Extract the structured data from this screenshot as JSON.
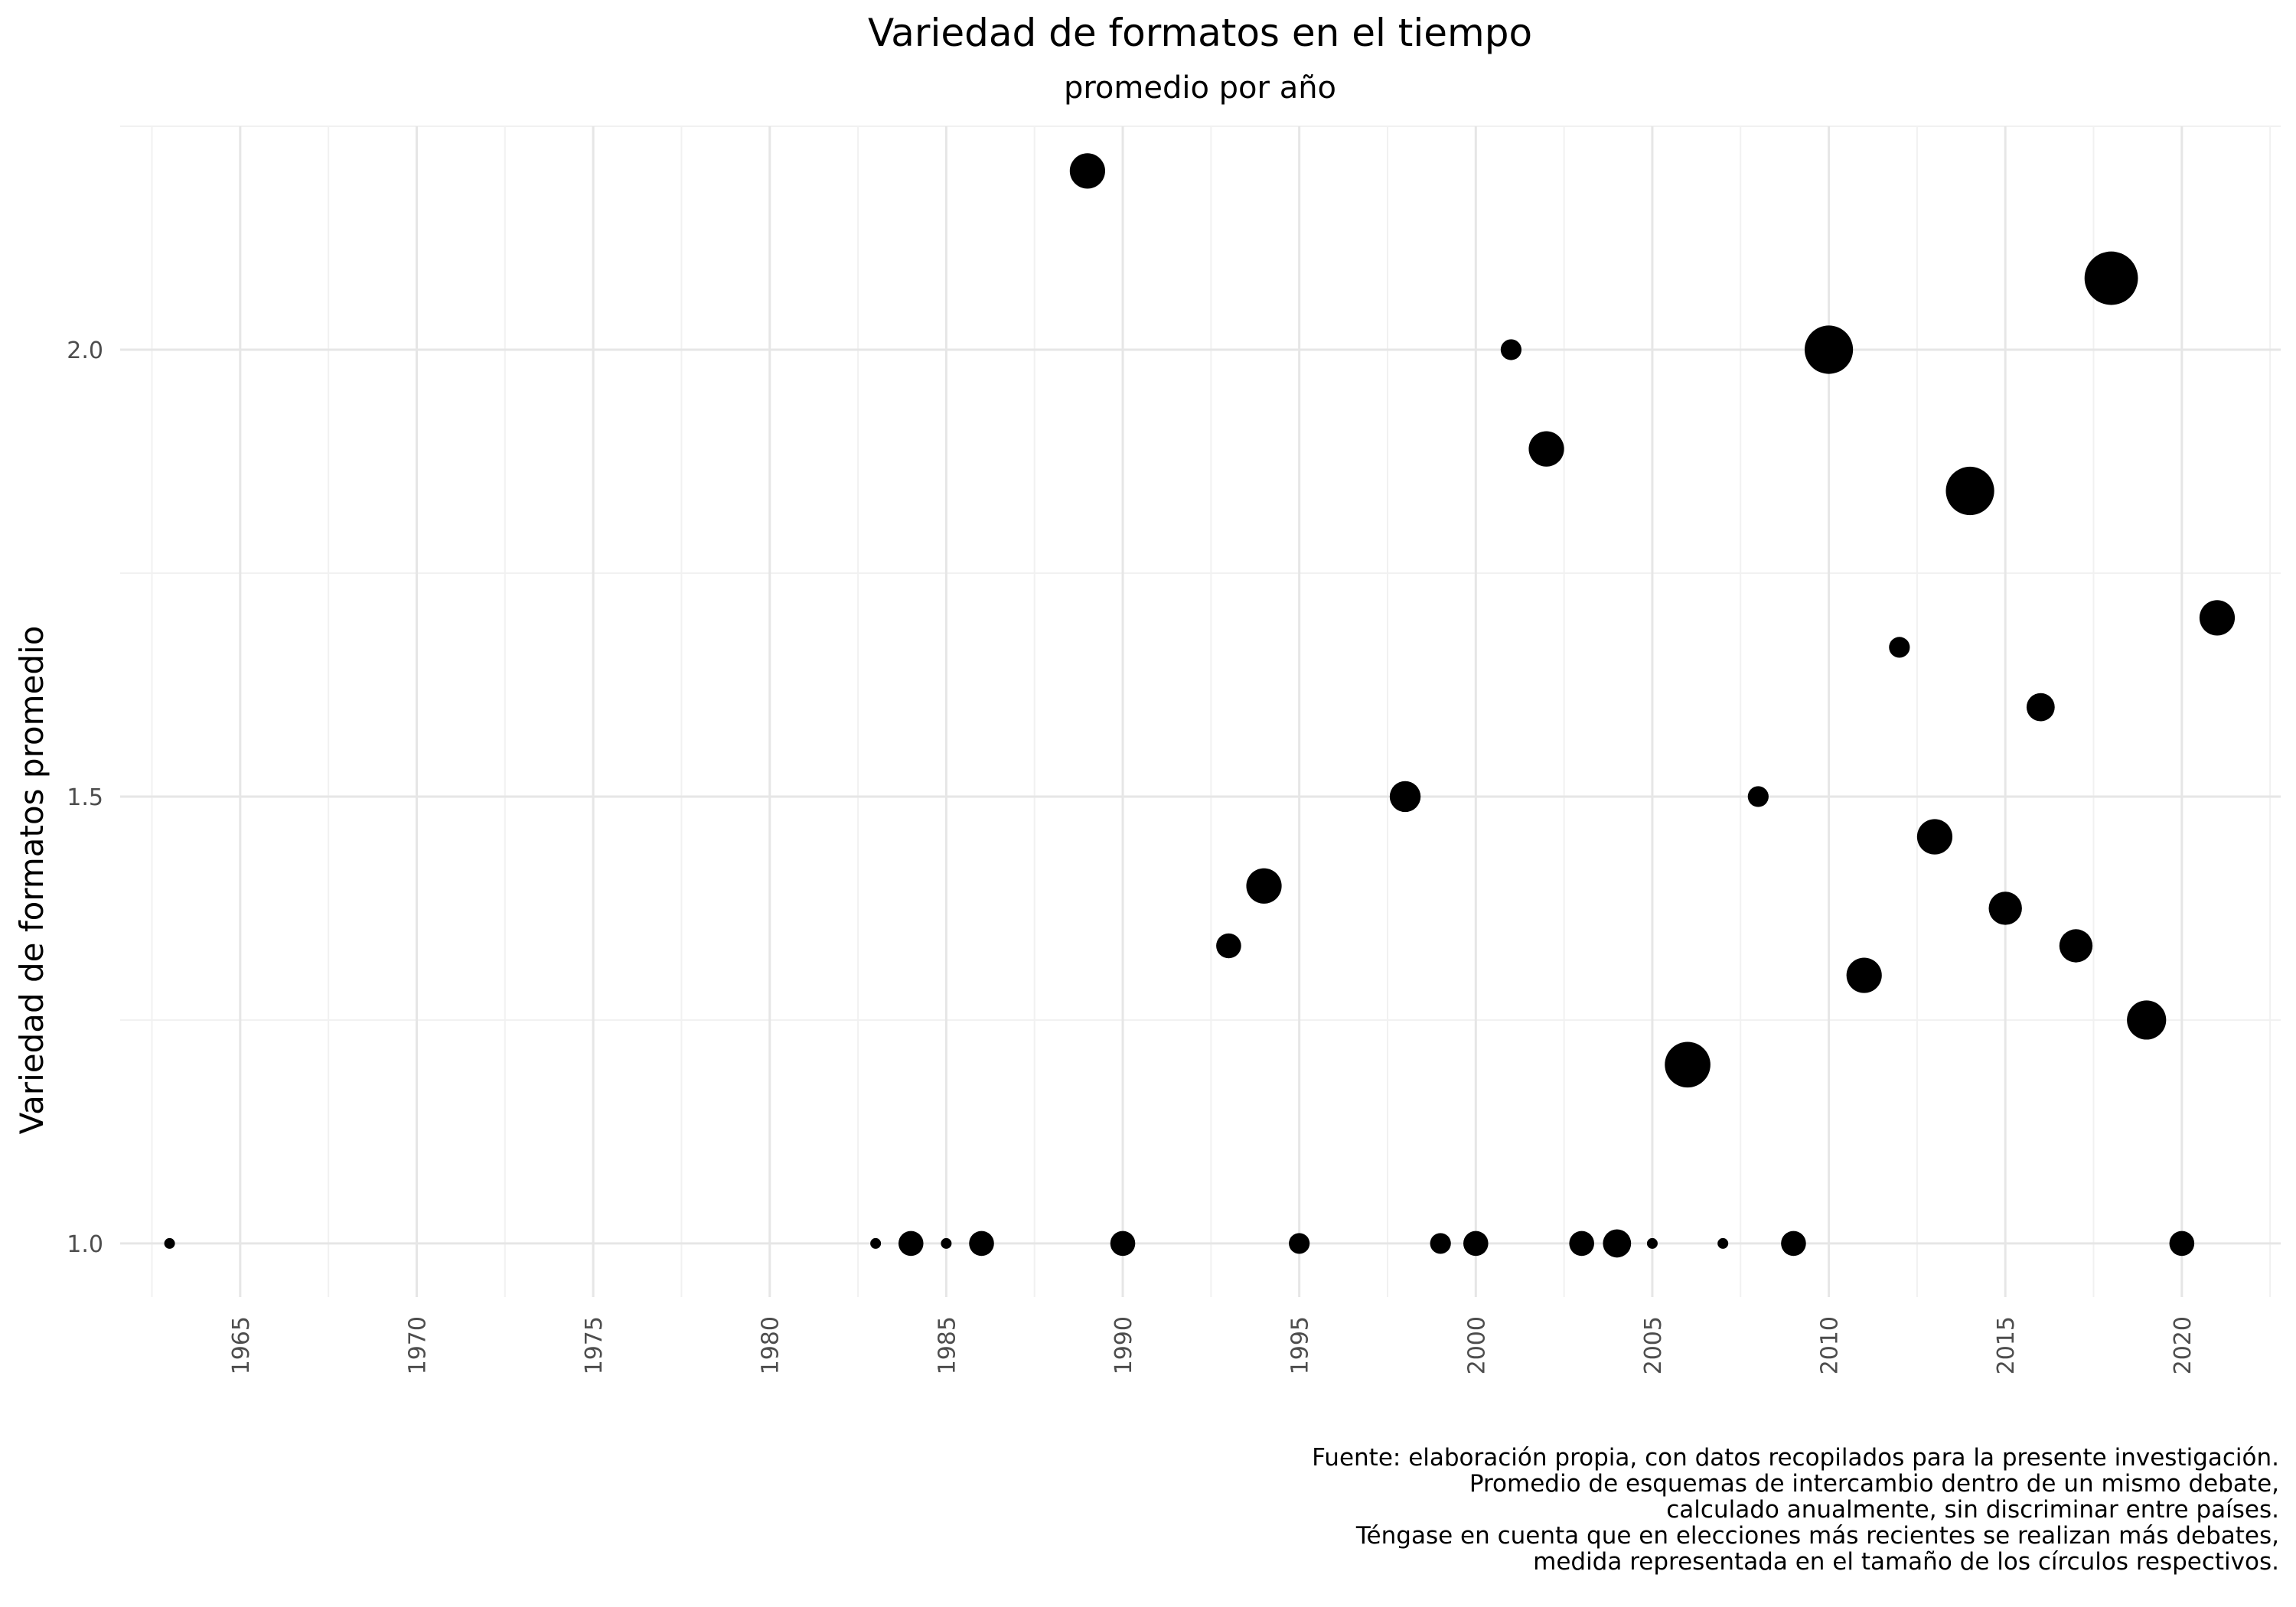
{
  "chart_data": {
    "type": "scatter",
    "title": "Variedad de formatos en el tiempo",
    "subtitle": "promedio por año",
    "xlabel": "",
    "ylabel": "Variedad de formatos promedio",
    "xlim": [
      1961.6,
      2022.8
    ],
    "ylim": [
      0.94,
      2.25
    ],
    "x_ticks": [
      1965,
      1970,
      1975,
      1980,
      1985,
      1990,
      1995,
      2000,
      2005,
      2010,
      2015,
      2020
    ],
    "y_ticks": [
      1.0,
      1.5,
      2.0
    ],
    "y_tick_labels": [
      "1.0",
      "1.5",
      "2.0"
    ],
    "grid": true,
    "legend": "none",
    "point_color": "#000000",
    "size_variable": "número de debates por año (relativo)",
    "points": [
      {
        "x": 1963,
        "y": 1.0,
        "size": 1
      },
      {
        "x": 1983,
        "y": 1.0,
        "size": 1
      },
      {
        "x": 1984,
        "y": 1.0,
        "size": 2
      },
      {
        "x": 1985,
        "y": 1.0,
        "size": 1
      },
      {
        "x": 1986,
        "y": 1.0,
        "size": 2
      },
      {
        "x": 1989,
        "y": 2.2,
        "size": 4
      },
      {
        "x": 1990,
        "y": 1.0,
        "size": 2
      },
      {
        "x": 1993,
        "y": 1.333,
        "size": 2
      },
      {
        "x": 1994,
        "y": 1.4,
        "size": 4
      },
      {
        "x": 1995,
        "y": 1.0,
        "size": 1.5
      },
      {
        "x": 1998,
        "y": 1.5,
        "size": 3
      },
      {
        "x": 1999,
        "y": 1.0,
        "size": 1.5
      },
      {
        "x": 2000,
        "y": 1.0,
        "size": 2
      },
      {
        "x": 2001,
        "y": 2.0,
        "size": 1.5
      },
      {
        "x": 2002,
        "y": 1.889,
        "size": 4
      },
      {
        "x": 2003,
        "y": 1.0,
        "size": 2
      },
      {
        "x": 2004,
        "y": 1.0,
        "size": 2.5
      },
      {
        "x": 2005,
        "y": 1.0,
        "size": 1
      },
      {
        "x": 2006,
        "y": 1.2,
        "size": 7
      },
      {
        "x": 2007,
        "y": 1.0,
        "size": 1
      },
      {
        "x": 2008,
        "y": 1.5,
        "size": 1.5
      },
      {
        "x": 2009,
        "y": 1.0,
        "size": 2
      },
      {
        "x": 2010,
        "y": 2.0,
        "size": 8
      },
      {
        "x": 2011,
        "y": 1.3,
        "size": 4
      },
      {
        "x": 2012,
        "y": 1.667,
        "size": 1.5
      },
      {
        "x": 2013,
        "y": 1.455,
        "size": 4
      },
      {
        "x": 2014,
        "y": 1.842,
        "size": 8
      },
      {
        "x": 2015,
        "y": 1.375,
        "size": 3.5
      },
      {
        "x": 2016,
        "y": 1.6,
        "size": 2.5
      },
      {
        "x": 2017,
        "y": 1.333,
        "size": 3.5
      },
      {
        "x": 2018,
        "y": 2.08,
        "size": 10
      },
      {
        "x": 2019,
        "y": 1.25,
        "size": 5
      },
      {
        "x": 2020,
        "y": 1.0,
        "size": 2
      },
      {
        "x": 2021,
        "y": 1.7,
        "size": 4
      }
    ],
    "caption": [
      "Fuente: elaboración propia, con datos recopilados para la presente investigación.",
      "Promedio de esquemas de intercambio dentro de un mismo debate,",
      "calculado anualmente, sin discriminar entre países.",
      "Téngase en cuenta que en elecciones más recientes se realizan más debates,",
      "medida representada en el tamaño de los círculos respectivos."
    ]
  }
}
